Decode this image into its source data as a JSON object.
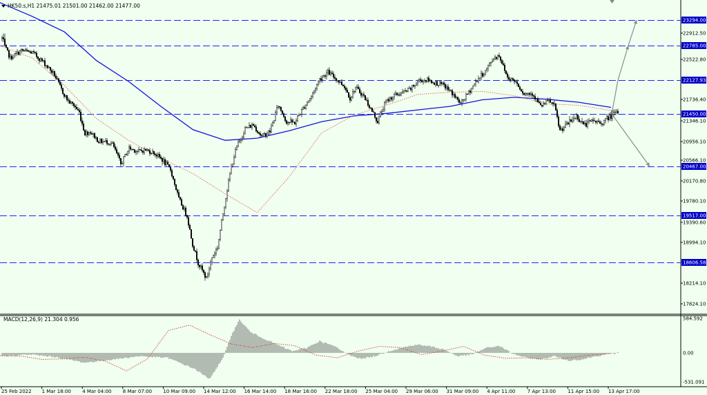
{
  "header": {
    "symbol_line": "HK50.s,H1  21475.01 21501.00 21462.00 21477.00",
    "macd_label": "MACD(12,26,9) 21.304 0.956"
  },
  "colors": {
    "background": "#f0fff0",
    "candles": "#000000",
    "ma_fast": "#e05a3a",
    "ma_slow": "#1010e0",
    "levels": "#2020ff",
    "level_label_bg": "#0000c8",
    "macd_hist": "#555555",
    "macd_signal": "#d04030",
    "arrows": "#8a8a8a"
  },
  "chart_data": [
    {
      "type": "candlestick",
      "title": "HK50.s,H1",
      "ylim": [
        17600,
        23600
      ],
      "y_ticks": [
        "23294.00",
        "22912.50",
        "22785.00",
        "22522.80",
        "22127.93",
        "21736.40",
        "21450.00",
        "21346.10",
        "20956.10",
        "20566.10",
        "20467.00",
        "20170.80",
        "19780.10",
        "19517.00",
        "19390.60",
        "18994.10",
        "18606.58",
        "18214.10",
        "17824.10"
      ],
      "x_ticks": [
        "25 Feb 2022",
        "1 Mar 18:00",
        "4 Mar 04:00",
        "8 Mar 07:00",
        "10 Mar 09:00",
        "14 Mar 12:00",
        "16 Mar 14:00",
        "18 Mar 16:00",
        "22 Mar 18:00",
        "25 Mar 04:00",
        "29 Mar 06:00",
        "31 Mar 09:00",
        "4 Apr 11:00",
        "7 Apr 13:00",
        "11 Apr 15:00",
        "13 Apr 17:00"
      ],
      "levels": [
        23294.0,
        22785.0,
        22127.93,
        21450.0,
        20467.0,
        19517.0,
        18606.58
      ],
      "level_labels": [
        "23294.00",
        "22785.00",
        "22127.93",
        "21450.00",
        "20467.00",
        "19517.00",
        "18606.58"
      ],
      "close_anchors": [
        [
          0,
          22860
        ],
        [
          6,
          22550
        ],
        [
          14,
          22690
        ],
        [
          22,
          22650
        ],
        [
          30,
          22470
        ],
        [
          38,
          22230
        ],
        [
          44,
          21880
        ],
        [
          48,
          21700
        ],
        [
          52,
          21620
        ],
        [
          56,
          21480
        ],
        [
          60,
          21110
        ],
        [
          64,
          21140
        ],
        [
          70,
          20960
        ],
        [
          76,
          20950
        ],
        [
          80,
          20900
        ],
        [
          86,
          20500
        ],
        [
          92,
          20820
        ],
        [
          98,
          20750
        ],
        [
          104,
          20780
        ],
        [
          110,
          20720
        ],
        [
          116,
          20580
        ],
        [
          122,
          20400
        ],
        [
          128,
          19820
        ],
        [
          134,
          19510
        ],
        [
          138,
          18960
        ],
        [
          142,
          18600
        ],
        [
          148,
          18300
        ],
        [
          152,
          18700
        ],
        [
          156,
          18900
        ],
        [
          160,
          19560
        ],
        [
          166,
          20450
        ],
        [
          170,
          20850
        ],
        [
          176,
          21200
        ],
        [
          182,
          21270
        ],
        [
          188,
          21050
        ],
        [
          194,
          21150
        ],
        [
          200,
          21620
        ],
        [
          206,
          21330
        ],
        [
          212,
          21310
        ],
        [
          218,
          21560
        ],
        [
          224,
          21800
        ],
        [
          230,
          22150
        ],
        [
          236,
          22280
        ],
        [
          242,
          22150
        ],
        [
          248,
          22000
        ],
        [
          252,
          21760
        ],
        [
          256,
          21980
        ],
        [
          262,
          21800
        ],
        [
          268,
          21500
        ],
        [
          272,
          21330
        ],
        [
          278,
          21690
        ],
        [
          284,
          21820
        ],
        [
          290,
          21870
        ],
        [
          296,
          21950
        ],
        [
          302,
          22120
        ],
        [
          308,
          22130
        ],
        [
          314,
          22070
        ],
        [
          320,
          22020
        ],
        [
          326,
          21860
        ],
        [
          332,
          21650
        ],
        [
          338,
          21880
        ],
        [
          344,
          22130
        ],
        [
          350,
          22300
        ],
        [
          356,
          22550
        ],
        [
          360,
          22600
        ],
        [
          366,
          22180
        ],
        [
          372,
          22100
        ],
        [
          378,
          21850
        ],
        [
          384,
          21860
        ],
        [
          390,
          21600
        ],
        [
          396,
          21710
        ],
        [
          400,
          21610
        ],
        [
          404,
          21160
        ],
        [
          410,
          21300
        ],
        [
          416,
          21420
        ],
        [
          422,
          21270
        ],
        [
          428,
          21350
        ],
        [
          434,
          21300
        ],
        [
          440,
          21410
        ],
        [
          446,
          21480
        ]
      ],
      "series": [
        {
          "name": "MA fast",
          "values_approx": [
            22780,
            22550,
            22020,
            21380,
            20980,
            20610,
            20320,
            19920,
            19570,
            20260,
            21120,
            21430,
            21620,
            21840,
            21880,
            21900,
            21810,
            21650,
            21620,
            21520
          ]
        },
        {
          "name": "MA slow",
          "values_approx": [
            23800,
            23400,
            22950,
            22500,
            22100,
            21600,
            21180,
            20980,
            21020,
            21160,
            21330,
            21420,
            21460,
            21530,
            21600,
            21730,
            21780,
            21740,
            21680,
            21580
          ]
        }
      ],
      "forecast_arrows": {
        "pivot": 22127.93,
        "targets": [
          22785.0,
          23294.0,
          21450.0,
          20467.0
        ]
      }
    },
    {
      "type": "bar",
      "title": "MACD(12,26,9)",
      "ylim": [
        -531.091,
        584.592
      ],
      "y_ticks": [
        "584.592",
        "0.00",
        "-531.091"
      ],
      "hist_anchors": [
        [
          0,
          -60
        ],
        [
          20,
          -30
        ],
        [
          40,
          -80
        ],
        [
          60,
          -180
        ],
        [
          80,
          -120
        ],
        [
          100,
          -60
        ],
        [
          120,
          -90
        ],
        [
          140,
          -300
        ],
        [
          150,
          -480
        ],
        [
          160,
          -100
        ],
        [
          166,
          300
        ],
        [
          172,
          560
        ],
        [
          180,
          350
        ],
        [
          190,
          240
        ],
        [
          200,
          130
        ],
        [
          210,
          30
        ],
        [
          220,
          80
        ],
        [
          230,
          200
        ],
        [
          240,
          120
        ],
        [
          250,
          -20
        ],
        [
          260,
          -110
        ],
        [
          270,
          -60
        ],
        [
          280,
          30
        ],
        [
          290,
          90
        ],
        [
          300,
          140
        ],
        [
          310,
          110
        ],
        [
          320,
          60
        ],
        [
          330,
          -60
        ],
        [
          340,
          -30
        ],
        [
          350,
          80
        ],
        [
          360,
          120
        ],
        [
          370,
          -20
        ],
        [
          380,
          -90
        ],
        [
          390,
          -120
        ],
        [
          400,
          -60
        ],
        [
          410,
          -140
        ],
        [
          420,
          -120
        ],
        [
          430,
          -60
        ],
        [
          440,
          -20
        ],
        [
          446,
          0
        ]
      ],
      "signal_approx": [
        -50,
        -60,
        -120,
        -110,
        -80,
        -150,
        -330,
        -110,
        380,
        470,
        300,
        150,
        90,
        160,
        120,
        -40,
        -90,
        30,
        110,
        90,
        -30,
        30,
        110,
        -40,
        -100,
        -90,
        -120,
        -90,
        -40,
        -10
      ]
    }
  ]
}
